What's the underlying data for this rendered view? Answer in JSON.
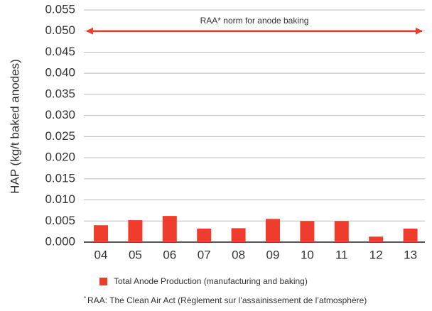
{
  "chart_data": {
    "type": "bar",
    "y_label": "HAP (kg/t baked anodes)",
    "categories": [
      "04",
      "05",
      "06",
      "07",
      "08",
      "09",
      "10",
      "11",
      "12",
      "13"
    ],
    "series": [
      {
        "name": "Total Anode Production (manufacturing and baking)",
        "color": "#ee3d2c",
        "values": [
          0.004,
          0.0052,
          0.0062,
          0.0032,
          0.0033,
          0.0055,
          0.005,
          0.005,
          0.0013,
          0.0032
        ]
      }
    ],
    "reference_line": {
      "value": 0.05,
      "label": "RAA* norm for anode baking",
      "color": "#e8412f"
    },
    "ylim": [
      0,
      0.055
    ],
    "yticks": [
      {
        "value": 0,
        "label": "0.000"
      },
      {
        "value": 0.005,
        "label": "0.005"
      },
      {
        "value": 0.01,
        "label": "0.010"
      },
      {
        "value": 0.015,
        "label": "0.015"
      },
      {
        "value": 0.02,
        "label": "0.020"
      },
      {
        "value": 0.025,
        "label": "0.025"
      },
      {
        "value": 0.03,
        "label": "0.030"
      },
      {
        "value": 0.035,
        "label": "0.035"
      },
      {
        "value": 0.04,
        "label": "0.040"
      },
      {
        "value": 0.045,
        "label": "0.045"
      },
      {
        "value": 0.05,
        "label": "0.050"
      },
      {
        "value": 0.055,
        "label": "0.055"
      }
    ],
    "grid": true,
    "footnote_marker": "*",
    "footnote": "RAA: The Clean Air Act (Règlement sur l’assainissement de l’atmosphère)"
  }
}
